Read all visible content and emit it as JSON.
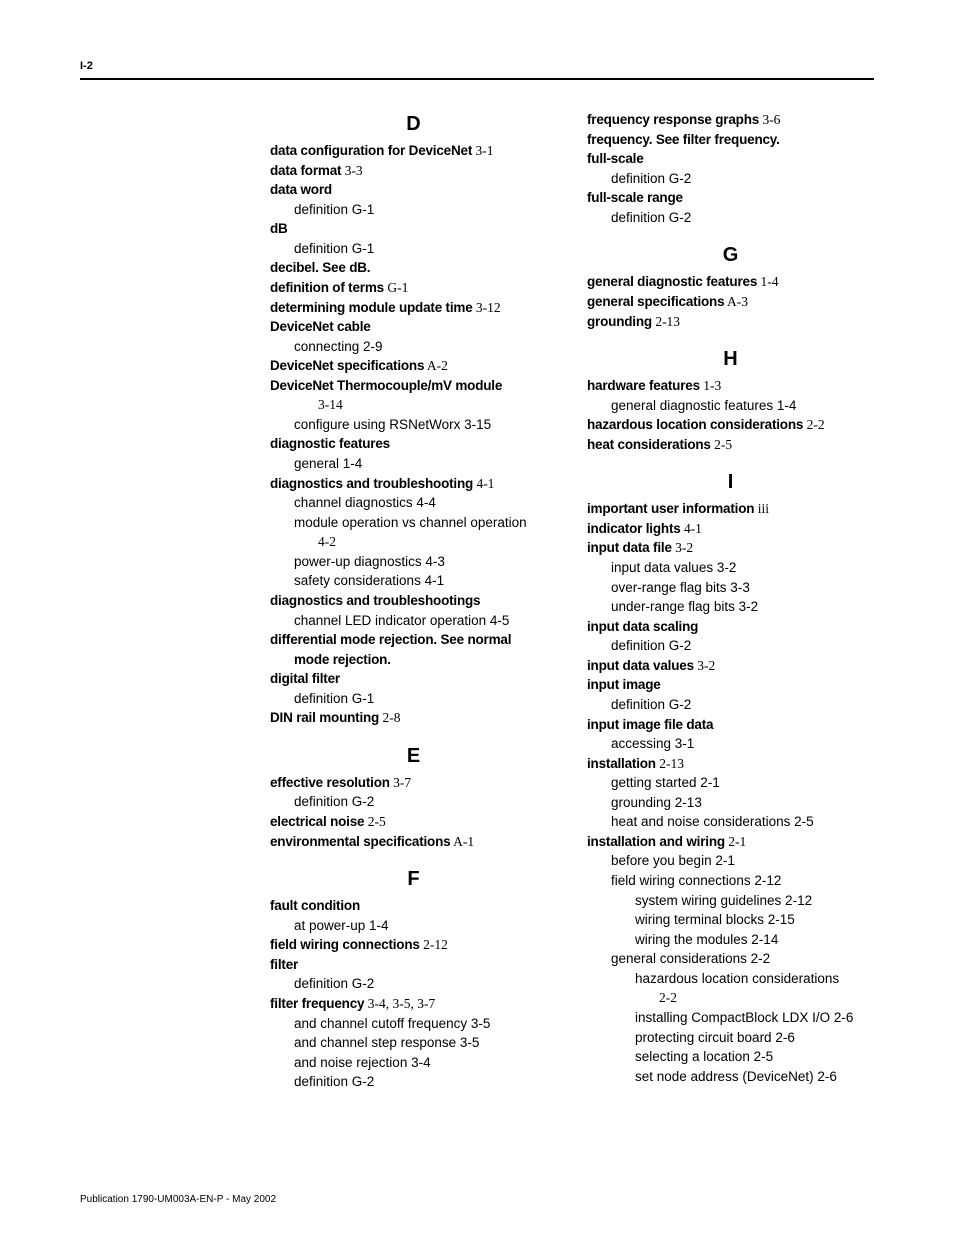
{
  "header_id": "I-2",
  "footer": "Publication 1790-UM003A-EN-P - May 2002",
  "letters": {
    "D": "D",
    "E": "E",
    "F": "F",
    "G": "G",
    "H": "H",
    "I": "I"
  },
  "D": {
    "data_configuration": {
      "term": "data configuration for DeviceNet",
      "ref": " 3-1"
    },
    "data_format": {
      "term": "data format",
      "ref": " 3-3"
    },
    "data_word": {
      "term": "data word",
      "sub": "definition G-1"
    },
    "dB": {
      "term": "dB",
      "sub": "definition G-1"
    },
    "decibel": {
      "term": "decibel. See dB."
    },
    "def_terms": {
      "term": "definition of terms",
      "ref": " G-1"
    },
    "det_update": {
      "term": "determining module update time",
      "ref": " 3-12"
    },
    "dn_cable": {
      "term": "DeviceNet cable",
      "sub": "connecting 2-9"
    },
    "dn_spec": {
      "term": "DeviceNet specifications",
      "ref": " A-2"
    },
    "dn_thermo": {
      "term": "DeviceNet Thermocouple/mV module",
      "cont": "3-14",
      "sub": "configure using RSNetWorx 3-15"
    },
    "diag_feat": {
      "term": "diagnostic features",
      "sub": "general 1-4"
    },
    "diag_trouble": {
      "term": "diagnostics and troubleshooting",
      "ref": " 4-1",
      "s1": "channel diagnostics 4-4",
      "s2a": "module operation vs channel operation",
      "s2b": "4-2",
      "s3": "power-up diagnostics 4-3",
      "s4": "safety considerations 4-1"
    },
    "diag_troubles": {
      "term": "diagnostics and troubleshootings",
      "sub": "channel LED indicator operation 4-5"
    },
    "diff_mode": {
      "l1": "differential mode rejection. See normal",
      "l2": "mode rejection."
    },
    "dig_filter": {
      "term": "digital filter",
      "sub": "definition G-1"
    },
    "din": {
      "term": "DIN rail mounting",
      "ref": " 2-8"
    }
  },
  "E": {
    "eff_res": {
      "term": "effective resolution",
      "ref": " 3-7",
      "sub": "definition G-2"
    },
    "elec_noise": {
      "term": "electrical noise",
      "ref": " 2-5"
    },
    "env_spec": {
      "term": "environmental specifications",
      "ref": " A-1"
    }
  },
  "F": {
    "fault": {
      "term": "fault condition",
      "sub": "at power-up 1-4"
    },
    "field_wiring": {
      "term": "field wiring connections",
      "ref": " 2-12"
    },
    "filter": {
      "term": "filter",
      "sub": "definition G-2"
    },
    "filter_freq": {
      "term": "filter frequency",
      "ref": " 3-4, 3-5, 3-7",
      "s1": "and channel cutoff frequency 3-5",
      "s2": "and channel step response 3-5",
      "s3": "and noise rejection 3-4",
      "s4": "definition G-2"
    }
  },
  "col2top": {
    "freq_resp": {
      "term": "frequency response graphs",
      "ref": " 3-6"
    },
    "freq_see": {
      "term": "frequency. See filter frequency."
    },
    "full_scale": {
      "term": "full-scale",
      "sub": "definition G-2"
    },
    "full_scale_range": {
      "term": "full-scale range",
      "sub": "definition G-2"
    }
  },
  "G": {
    "gen_diag": {
      "term": "general diagnostic features",
      "ref": " 1-4"
    },
    "gen_spec": {
      "term": "general specifications",
      "ref": " A-3"
    },
    "grounding": {
      "term": "grounding",
      "ref": " 2-13"
    }
  },
  "H": {
    "hw_feat": {
      "term": "hardware features",
      "ref": " 1-3",
      "sub": "general diagnostic features 1-4"
    },
    "haz_loc": {
      "term": "hazardous location considerations",
      "ref": " 2-2"
    },
    "heat": {
      "term": "heat considerations",
      "ref": " 2-5"
    }
  },
  "I": {
    "imp_user": {
      "term": "important user information",
      "ref": " iii"
    },
    "ind_lights": {
      "term": "indicator lights",
      "ref": " 4-1"
    },
    "inp_data_file": {
      "term": "input data file",
      "ref": " 3-2",
      "s1": "input data values 3-2",
      "s2": "over-range flag bits 3-3",
      "s3": "under-range flag bits 3-2"
    },
    "inp_data_scaling": {
      "term": "input data scaling",
      "sub": "definition G-2"
    },
    "inp_data_values": {
      "term": "input data values",
      "ref": " 3-2"
    },
    "inp_image": {
      "term": "input image",
      "sub": "definition G-2"
    },
    "inp_image_file": {
      "term": "input image file data",
      "sub": "accessing 3-1"
    },
    "installation": {
      "term": "installation",
      "ref": " 2-13",
      "s1": "getting started 2-1",
      "s2": "grounding 2-13",
      "s3": "heat and noise considerations 2-5"
    },
    "inst_wiring": {
      "term": "installation and wiring",
      "ref": " 2-1",
      "s1": "before you begin 2-1",
      "s2": "field wiring connections 2-12",
      "s2a": "system wiring guidelines 2-12",
      "s2b": "wiring terminal blocks 2-15",
      "s2c": "wiring the modules 2-14",
      "s3": "general considerations 2-2",
      "s3a_l1": "hazardous location considerations",
      "s3a_l2": "2-2",
      "s3b": "installing CompactBlock LDX I/O 2-6",
      "s3c": "protecting circuit board 2-6",
      "s3d": "selecting a location 2-5",
      "s3e": "set node address (DeviceNet) 2-6"
    }
  }
}
